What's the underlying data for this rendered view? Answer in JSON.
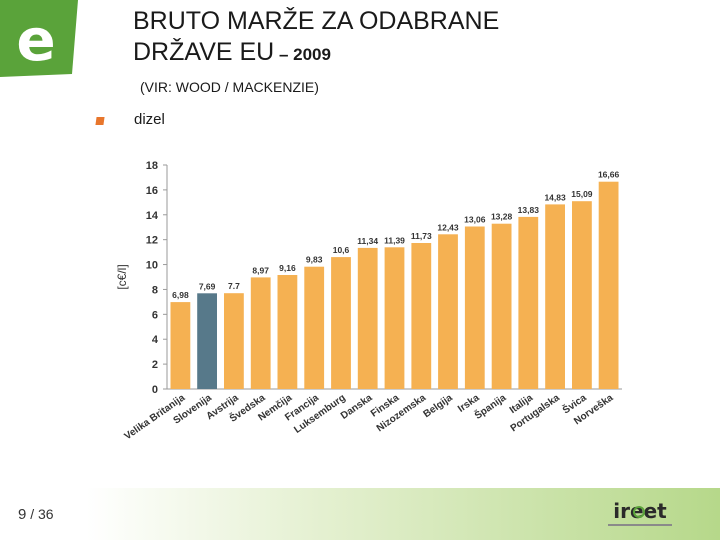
{
  "header": {
    "title_line1": "BRUTO MARŽE ZA ODABRANE",
    "title_line2_main": "DRŽAVE EU",
    "title_line2_tail": " – 2009",
    "subtitle": "(VIR: WOOD / MACKENZIE)"
  },
  "logo": {
    "letter": "e",
    "color": "#5aa33a"
  },
  "footer": {
    "page_current": "9",
    "page_total": "/ 36",
    "org_logo": "ireet"
  },
  "colors": {
    "bar": "#f5b152",
    "highlight": "#57798a",
    "accent": "#e8762c"
  },
  "chart_data": {
    "type": "bar",
    "legend": "dizel",
    "ylabel": "[c€/l]",
    "ylim": [
      0,
      18
    ],
    "yticks": [
      0,
      2,
      4,
      6,
      8,
      10,
      12,
      14,
      16,
      18
    ],
    "categories": [
      "Velika Britanija",
      "Slovenija",
      "Avstrija",
      "Švedska",
      "Nemčija",
      "Francija",
      "Luksemburg",
      "Danska",
      "Finska",
      "Nizozemska",
      "Belgija",
      "Irska",
      "Španija",
      "Italija",
      "Portugalska",
      "Švica",
      "Norveška"
    ],
    "values": [
      6.98,
      7.69,
      7.7,
      8.97,
      9.16,
      9.83,
      10.6,
      11.34,
      11.39,
      11.73,
      12.43,
      13.06,
      13.28,
      13.83,
      14.83,
      15.09,
      16.66
    ],
    "value_labels": [
      "6,98",
      "7,69",
      "7.7",
      "8,97",
      "9,16",
      "9,83",
      "10,6",
      "11,34",
      "11,39",
      "11,73",
      "12,43",
      "13,06",
      "13,28",
      "13,83",
      "14,83",
      "15,09",
      "16,66"
    ],
    "highlight_category": "Slovenija",
    "grid": false
  }
}
